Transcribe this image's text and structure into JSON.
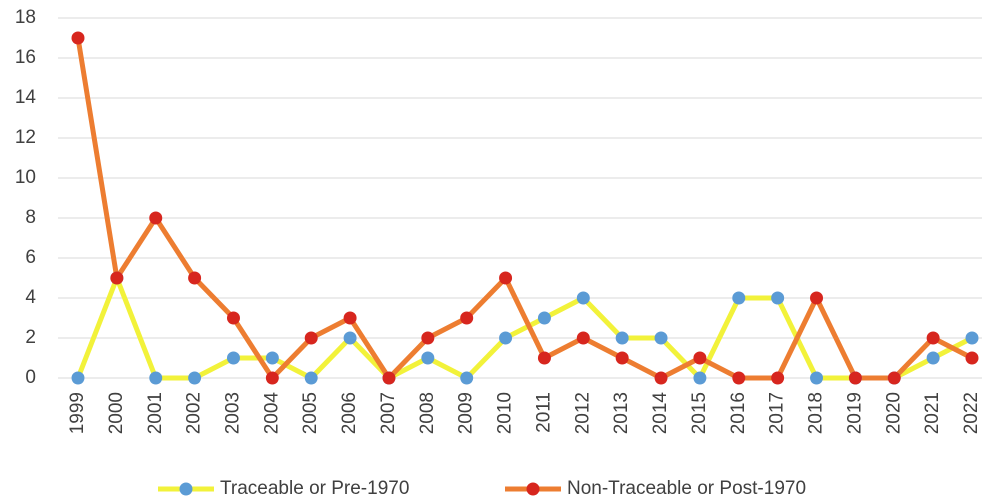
{
  "chart_data": {
    "type": "line",
    "categories": [
      "1999",
      "2000",
      "2001",
      "2002",
      "2003",
      "2004",
      "2005",
      "2006",
      "2007",
      "2008",
      "2009",
      "2010",
      "2011",
      "2012",
      "2013",
      "2014",
      "2015",
      "2016",
      "2017",
      "2018",
      "2019",
      "2020",
      "2021",
      "2022"
    ],
    "series": [
      {
        "name": "Traceable or Pre-1970",
        "color": "#f2f23a",
        "marker_color": "#5b9bd5",
        "values": [
          0,
          5,
          0,
          0,
          1,
          1,
          0,
          2,
          0,
          1,
          0,
          2,
          3,
          4,
          2,
          2,
          0,
          4,
          4,
          0,
          0,
          0,
          1,
          2
        ]
      },
      {
        "name": "Non-Traceable or Post-1970",
        "color": "#ed7d31",
        "marker_color": "#d7261e",
        "values": [
          17,
          5,
          8,
          5,
          3,
          0,
          2,
          3,
          0,
          2,
          3,
          5,
          1,
          2,
          1,
          0,
          1,
          0,
          0,
          4,
          0,
          0,
          2,
          1
        ]
      }
    ],
    "ylim": [
      0,
      18
    ],
    "yticks": [
      0,
      2,
      4,
      6,
      8,
      10,
      12,
      14,
      16,
      18
    ],
    "grid": true,
    "legend": "bottom"
  }
}
